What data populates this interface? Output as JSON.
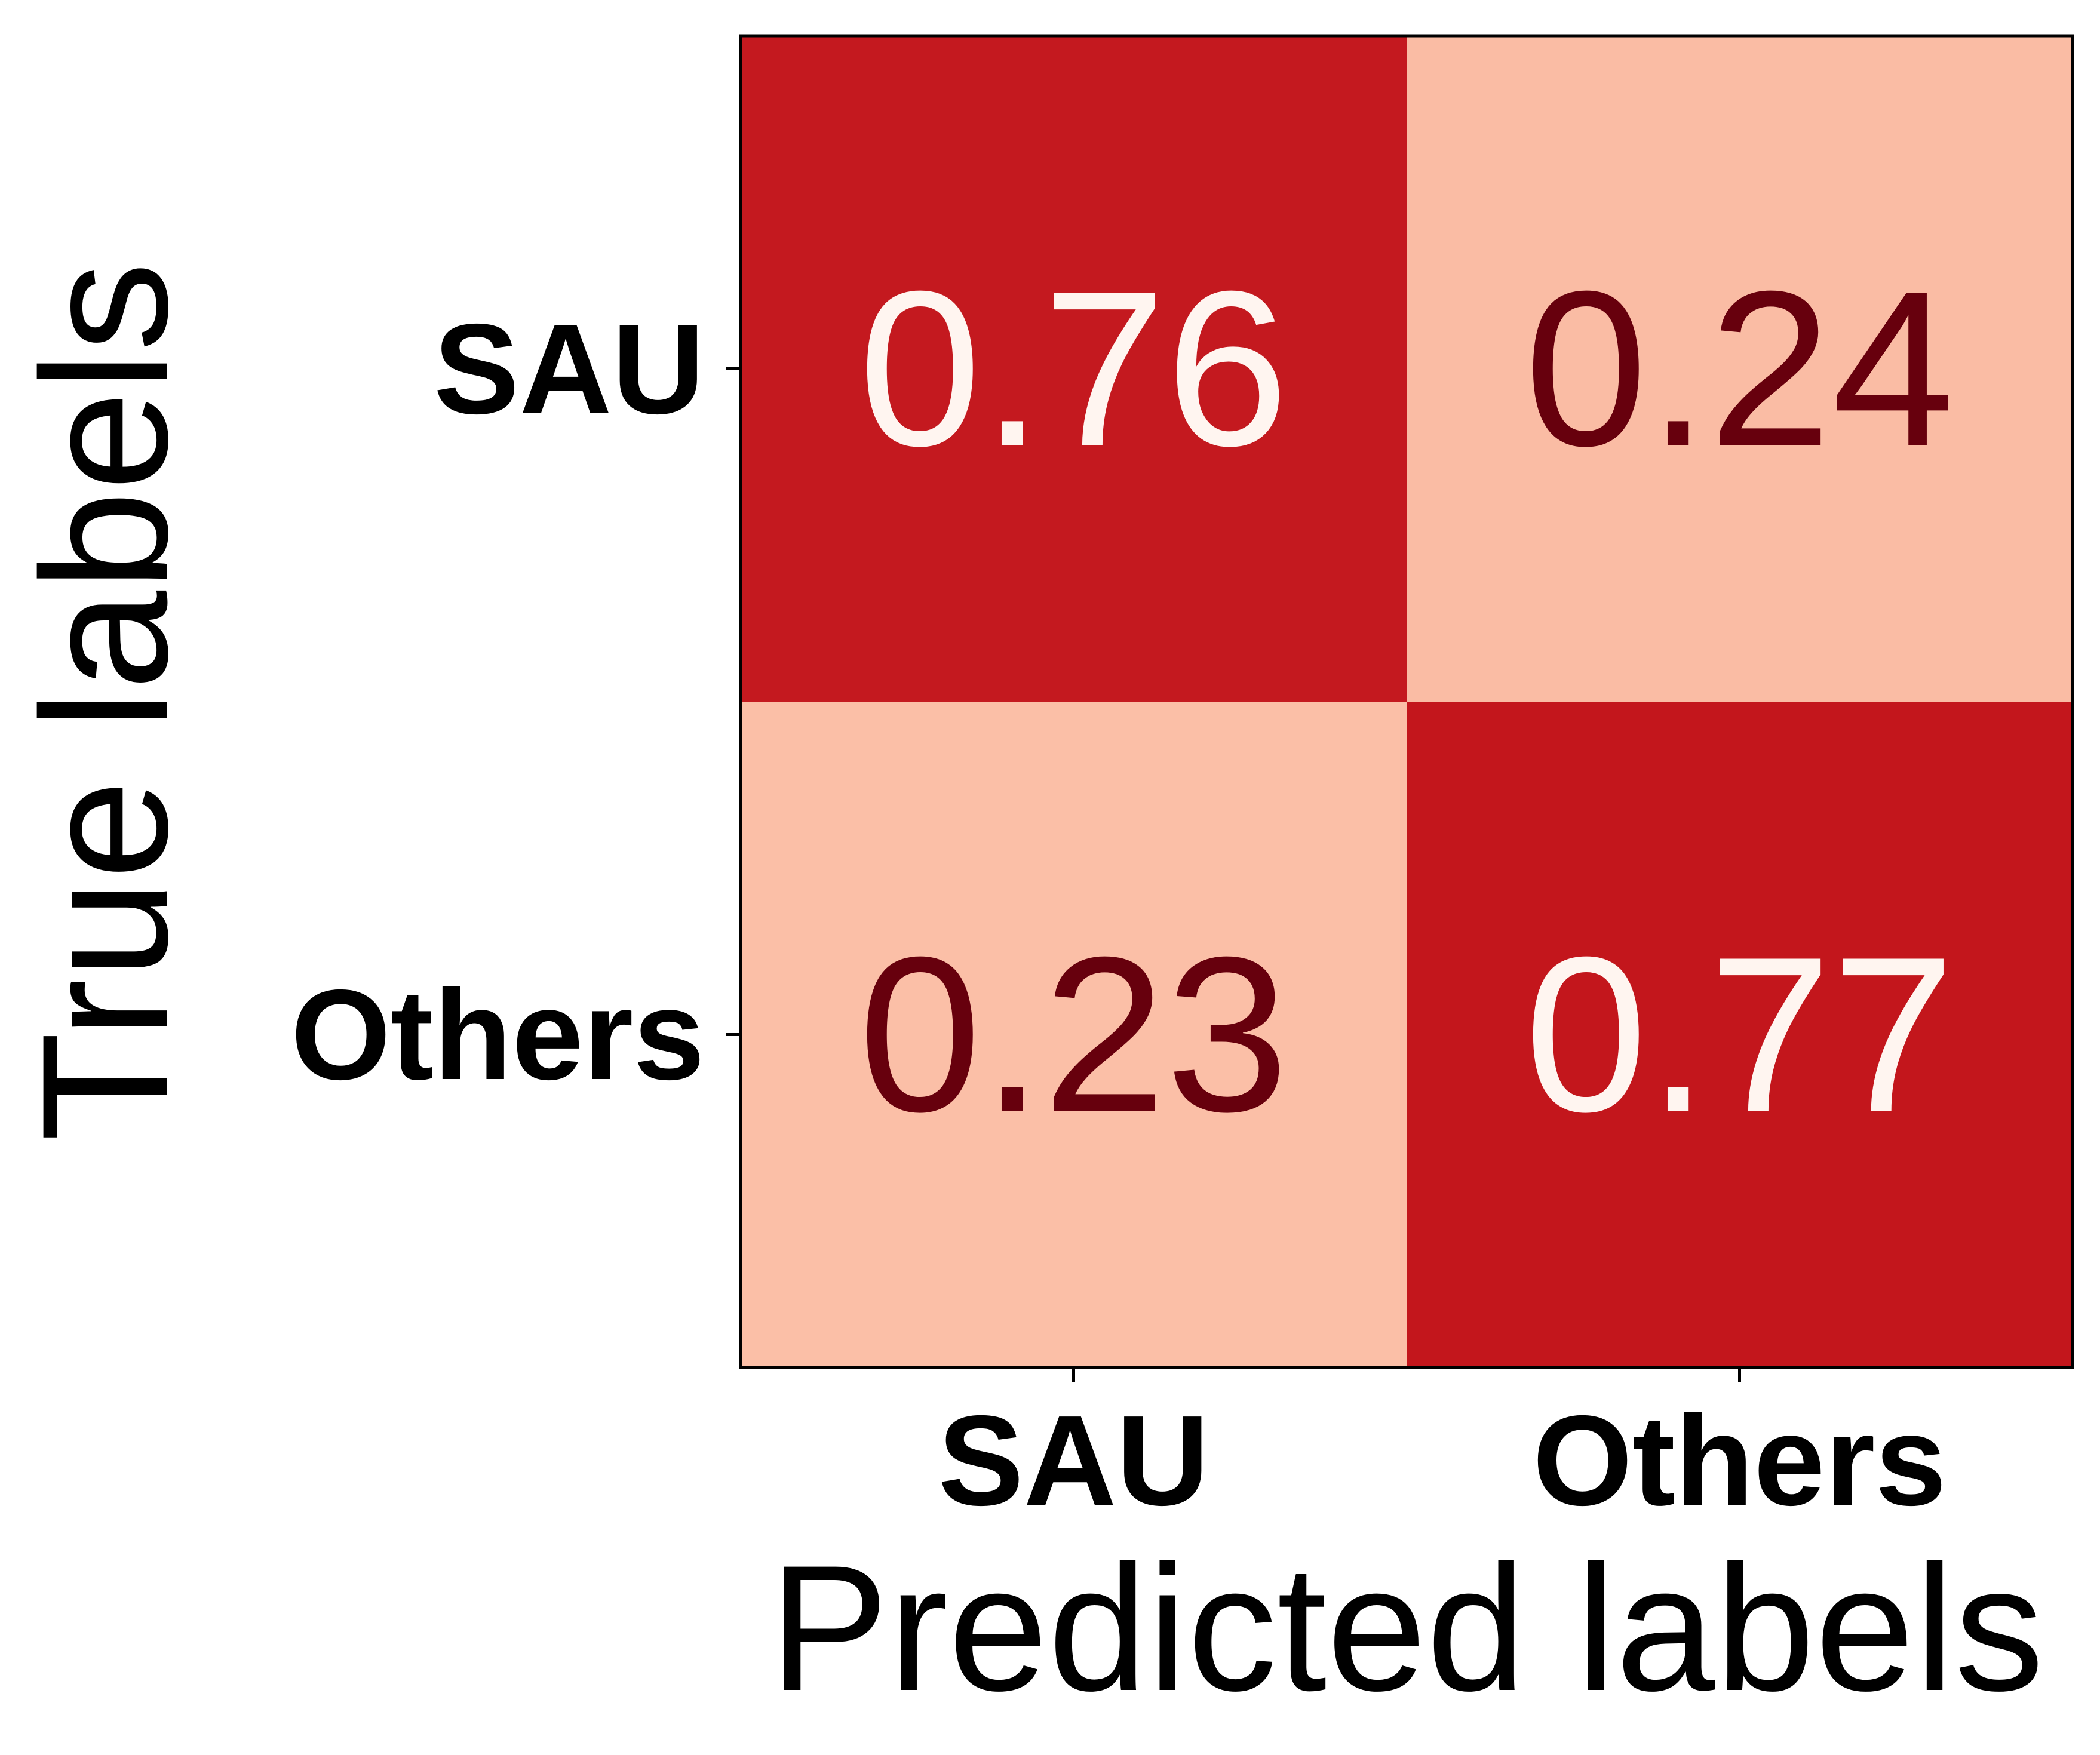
{
  "chart_data": {
    "type": "heatmap",
    "title": "",
    "xlabel": "Predicted labels",
    "ylabel": "True labels",
    "x_categories": [
      "SAU",
      "Others"
    ],
    "y_categories": [
      "SAU",
      "Others"
    ],
    "values": [
      [
        0.76,
        0.24
      ],
      [
        0.23,
        0.77
      ]
    ],
    "value_labels": [
      [
        "0.76",
        "0.24"
      ],
      [
        "0.23",
        "0.77"
      ]
    ],
    "colormap": "Reds",
    "colors": {
      "high": "#c3161c",
      "low": "#fbbfa7",
      "text_on_high": "#fff5f0",
      "text_on_low": "#67000d",
      "axis": "#000000"
    },
    "grid": false,
    "colorbar": false
  }
}
